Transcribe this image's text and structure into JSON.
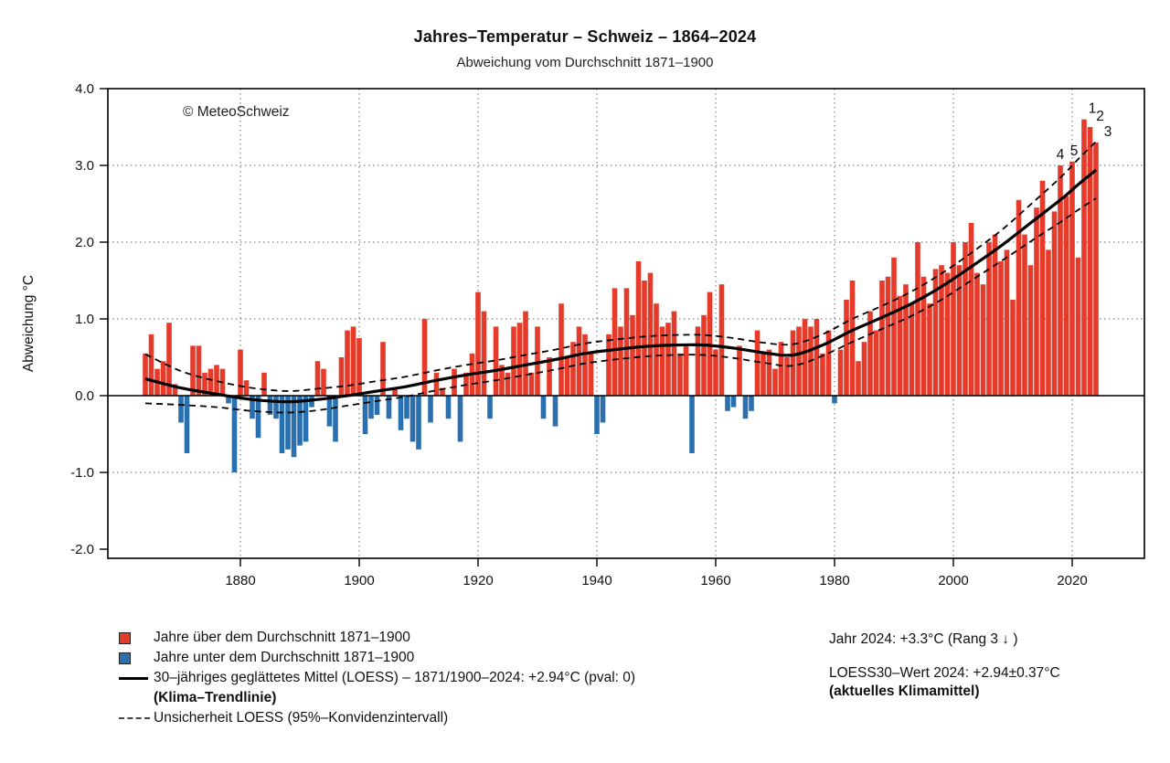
{
  "title": "Jahres–Temperatur – Schweiz – 1864–2024",
  "subtitle": "Abweichung vom Durchschnitt 1871–1900",
  "watermark": "© MeteoSchweiz",
  "colors": {
    "above": "#e63a2a",
    "below": "#2a6fae",
    "trend": "#000000",
    "grid": "#666666"
  },
  "legend": {
    "above": "Jahre über dem Durchschnitt 1871–1900",
    "below": "Jahre unter dem Durchschnitt 1871–1900",
    "loess_line1": "30–jähriges geglättetes Mittel (LOESS) – 1871/1900–2024: +2.94°C (pval: 0)",
    "loess_line2": "(Klima–Trendlinie)",
    "uncertainty": "Unsicherheit LOESS (95%–Konvidenzintervall)"
  },
  "info": {
    "line1": "Jahr 2024: +3.3°C (Rang 3 ↓ )",
    "line2": "LOESS30–Wert 2024: +2.94±0.37°C",
    "line3": "(aktuelles Klimamittel)"
  },
  "chart_data": {
    "type": "bar",
    "title": "Jahres–Temperatur – Schweiz – 1864–2024",
    "subtitle": "Abweichung vom Durchschnitt 1871–1900",
    "xlabel": "",
    "ylabel": "Abweichung °C",
    "ylim": [
      -2.0,
      4.0
    ],
    "xlim": [
      1862,
      2032
    ],
    "grid": "dotted",
    "y_ticks": [
      "4.0",
      "3.0",
      "2.0",
      "1.0",
      "0.0",
      "-1.0",
      "-2.0"
    ],
    "y_tick_values": [
      4.0,
      3.0,
      2.0,
      1.0,
      0.0,
      -1.0,
      -2.0
    ],
    "x_ticks": [
      "1880",
      "1900",
      "1920",
      "1940",
      "1960",
      "1980",
      "2000",
      "2020"
    ],
    "x_tick_values": [
      1880,
      1900,
      1920,
      1940,
      1960,
      1980,
      2000,
      2020
    ],
    "bars": {
      "year_start": 1864,
      "values": [
        0.55,
        0.8,
        0.35,
        0.45,
        0.95,
        0.15,
        -0.35,
        -0.75,
        0.65,
        0.65,
        0.3,
        0.35,
        0.4,
        0.35,
        -0.1,
        -1.0,
        0.6,
        0.2,
        -0.3,
        -0.55,
        0.3,
        -0.25,
        -0.3,
        -0.75,
        -0.7,
        -0.8,
        -0.65,
        -0.6,
        -0.15,
        0.45,
        0.35,
        -0.4,
        -0.6,
        0.5,
        0.85,
        0.9,
        0.75,
        -0.5,
        -0.3,
        -0.25,
        0.7,
        -0.3,
        0.1,
        -0.45,
        -0.3,
        -0.6,
        -0.7,
        1.0,
        -0.35,
        0.3,
        0.1,
        -0.3,
        0.35,
        -0.6,
        0.3,
        0.55,
        1.35,
        1.1,
        -0.3,
        0.9,
        0.4,
        0.3,
        0.9,
        0.95,
        1.1,
        0.3,
        0.9,
        -0.3,
        0.5,
        -0.4,
        1.2,
        0.5,
        0.7,
        0.9,
        0.8,
        0.55,
        -0.5,
        -0.35,
        0.8,
        1.4,
        0.9,
        1.4,
        1.05,
        1.75,
        1.5,
        1.6,
        1.2,
        0.9,
        0.95,
        1.1,
        0.55,
        0.65,
        -0.75,
        0.9,
        1.05,
        1.35,
        0.6,
        1.45,
        -0.2,
        -0.15,
        0.65,
        -0.3,
        -0.2,
        0.85,
        0.55,
        0.6,
        0.35,
        0.7,
        0.5,
        0.85,
        0.9,
        1.0,
        0.9,
        1.0,
        0.55,
        0.85,
        -0.1,
        0.6,
        1.25,
        1.5,
        0.45,
        0.7,
        1.1,
        0.85,
        1.5,
        1.55,
        1.8,
        1.3,
        1.45,
        1.2,
        2.0,
        1.55,
        1.2,
        1.65,
        1.7,
        1.6,
        2.0,
        1.7,
        2.0,
        2.25,
        1.6,
        1.45,
        2.0,
        2.1,
        1.75,
        1.9,
        1.25,
        2.55,
        2.1,
        1.7,
        2.45,
        2.8,
        1.9,
        2.4,
        3.0,
        2.6,
        3.05,
        1.8,
        3.6,
        3.5,
        3.3
      ]
    },
    "loess": {
      "label": "30–jähriges geglättetes Mittel (LOESS)",
      "years": [
        1864,
        1870,
        1876,
        1882,
        1888,
        1893,
        1898,
        1903,
        1908,
        1913,
        1918,
        1923,
        1928,
        1933,
        1938,
        1943,
        1948,
        1953,
        1958,
        1963,
        1968,
        1973,
        1978,
        1983,
        1988,
        1993,
        1998,
        2003,
        2008,
        2013,
        2018,
        2021,
        2024
      ],
      "values": [
        0.22,
        0.1,
        0.02,
        -0.05,
        -0.08,
        -0.05,
        0.0,
        0.06,
        0.12,
        0.2,
        0.27,
        0.33,
        0.4,
        0.47,
        0.55,
        0.6,
        0.64,
        0.66,
        0.66,
        0.62,
        0.56,
        0.53,
        0.66,
        0.85,
        1.02,
        1.2,
        1.42,
        1.68,
        1.95,
        2.25,
        2.55,
        2.75,
        2.94
      ],
      "band_delta": [
        0.32,
        0.22,
        0.17,
        0.15,
        0.14,
        0.14,
        0.13,
        0.13,
        0.13,
        0.13,
        0.13,
        0.13,
        0.13,
        0.13,
        0.13,
        0.13,
        0.13,
        0.13,
        0.13,
        0.13,
        0.13,
        0.14,
        0.14,
        0.15,
        0.15,
        0.16,
        0.17,
        0.18,
        0.2,
        0.24,
        0.29,
        0.33,
        0.37
      ],
      "value_2024": "+2.94±0.37°C"
    },
    "annotations": [
      {
        "label": "1",
        "year": 2022,
        "value": 3.6,
        "dx": 9
      },
      {
        "label": "2",
        "year": 2023,
        "value": 3.5,
        "dx": 11
      },
      {
        "label": "3",
        "year": 2024,
        "value": 3.3,
        "dx": 13
      },
      {
        "label": "4",
        "year": 2018,
        "value": 3.0,
        "dx": 0
      },
      {
        "label": "5",
        "year": 2020,
        "value": 3.05,
        "dx": 2
      }
    ],
    "legend_entries": [
      "Jahre über dem Durchschnitt 1871–1900",
      "Jahre unter dem Durchschnitt 1871–1900",
      "30–jähriges geglättetes Mittel (LOESS) – 1871/1900–2024: +2.94°C (pval: 0) (Klima–Trendlinie)",
      "Unsicherheit LOESS (95%–Konvidenzintervall)"
    ]
  }
}
